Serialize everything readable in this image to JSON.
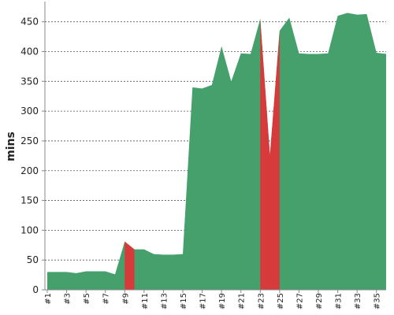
{
  "chart_data": {
    "type": "area",
    "title": "",
    "xlabel": "",
    "ylabel": "mins",
    "ylim": [
      0,
      480
    ],
    "yticks": [
      0,
      50,
      100,
      150,
      200,
      250,
      300,
      350,
      400,
      450
    ],
    "grid": true,
    "x": [
      "#1",
      "#2",
      "#3",
      "#4",
      "#5",
      "#6",
      "#7",
      "#8",
      "#9",
      "#10",
      "#11",
      "#12",
      "#13",
      "#14",
      "#15",
      "#16",
      "#17",
      "#18",
      "#19",
      "#20",
      "#21",
      "#22",
      "#23",
      "#24",
      "#25",
      "#26",
      "#27",
      "#28",
      "#29",
      "#30",
      "#31",
      "#32",
      "#33",
      "#34",
      "#35",
      "#36"
    ],
    "xticks": [
      "#1",
      "#3",
      "#5",
      "#7",
      "#9",
      "#11",
      "#13",
      "#15",
      "#17",
      "#19",
      "#21",
      "#23",
      "#25",
      "#27",
      "#29",
      "#31",
      "#33",
      "#35"
    ],
    "series": [
      {
        "values": [
          30,
          30,
          30,
          28,
          31,
          31,
          31,
          26,
          81,
          68,
          68,
          60,
          59,
          59,
          60,
          340,
          338,
          344,
          409,
          350,
          397,
          396,
          455,
          226,
          435,
          457,
          397,
          396,
          396,
          397,
          460,
          465,
          462,
          463,
          398,
          396
        ]
      }
    ],
    "highlight_segments": [
      {
        "from": "#9",
        "to": "#10"
      },
      {
        "from": "#23",
        "to": "#25"
      }
    ],
    "colors": {
      "area": "#45a06c",
      "highlight": "#d63a3a",
      "grid": "#555555",
      "axis": "#888888"
    }
  }
}
